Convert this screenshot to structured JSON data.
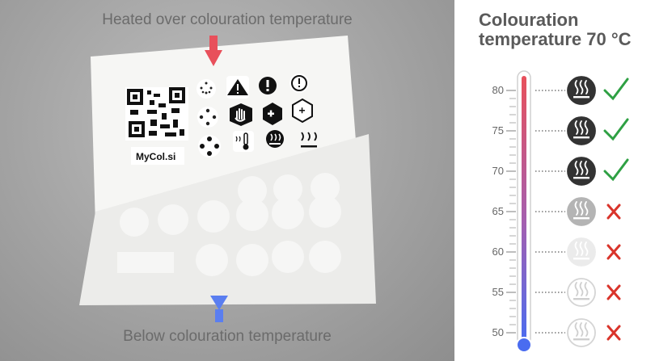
{
  "photo": {
    "caption_top": "Heated over colouration temperature",
    "caption_bottom": "Below colouration temperature",
    "sticker_label": "MyCol.si",
    "colors": {
      "arrow_top": "#e8505b",
      "arrow_bottom": "#5a7ef0"
    }
  },
  "panel": {
    "title": "Colouration temperature 70 °C",
    "scale": {
      "min": 50,
      "max": 80,
      "unit": "°C"
    },
    "ticks": [
      "80",
      "75",
      "70",
      "65",
      "60",
      "55",
      "50"
    ],
    "rows": [
      {
        "temp": 80,
        "icon": "steam-icon",
        "state": "coloured",
        "mark": "check-icon"
      },
      {
        "temp": 75,
        "icon": "steam-icon",
        "state": "coloured",
        "mark": "check-icon"
      },
      {
        "temp": 70,
        "icon": "steam-icon",
        "state": "coloured",
        "mark": "check-icon"
      },
      {
        "temp": 65,
        "icon": "steam-icon",
        "state": "faded",
        "mark": "cross-icon"
      },
      {
        "temp": 60,
        "icon": "steam-icon",
        "state": "faint",
        "mark": "cross-icon"
      },
      {
        "temp": 55,
        "icon": "steam-icon",
        "state": "outline",
        "mark": "cross-icon"
      },
      {
        "temp": 50,
        "icon": "steam-icon",
        "state": "outline",
        "mark": "cross-icon"
      }
    ],
    "colors": {
      "check": "#2ea043",
      "cross": "#d9342b",
      "thermo_hot": "#e8505b",
      "thermo_cold": "#4a6cf0"
    }
  }
}
